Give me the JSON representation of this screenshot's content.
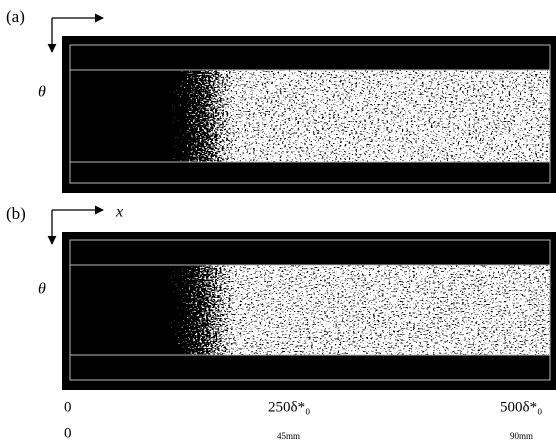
{
  "panels": [
    {
      "label": "(a)",
      "theta_label": "θ"
    },
    {
      "label": "(b)",
      "x_label": "x",
      "theta_label": "θ"
    }
  ],
  "scale": {
    "nondimensional": [
      "0",
      "250δ*₀",
      "500δ*₀"
    ],
    "dimensional": [
      "0",
      "45mm",
      "90mm"
    ]
  }
}
